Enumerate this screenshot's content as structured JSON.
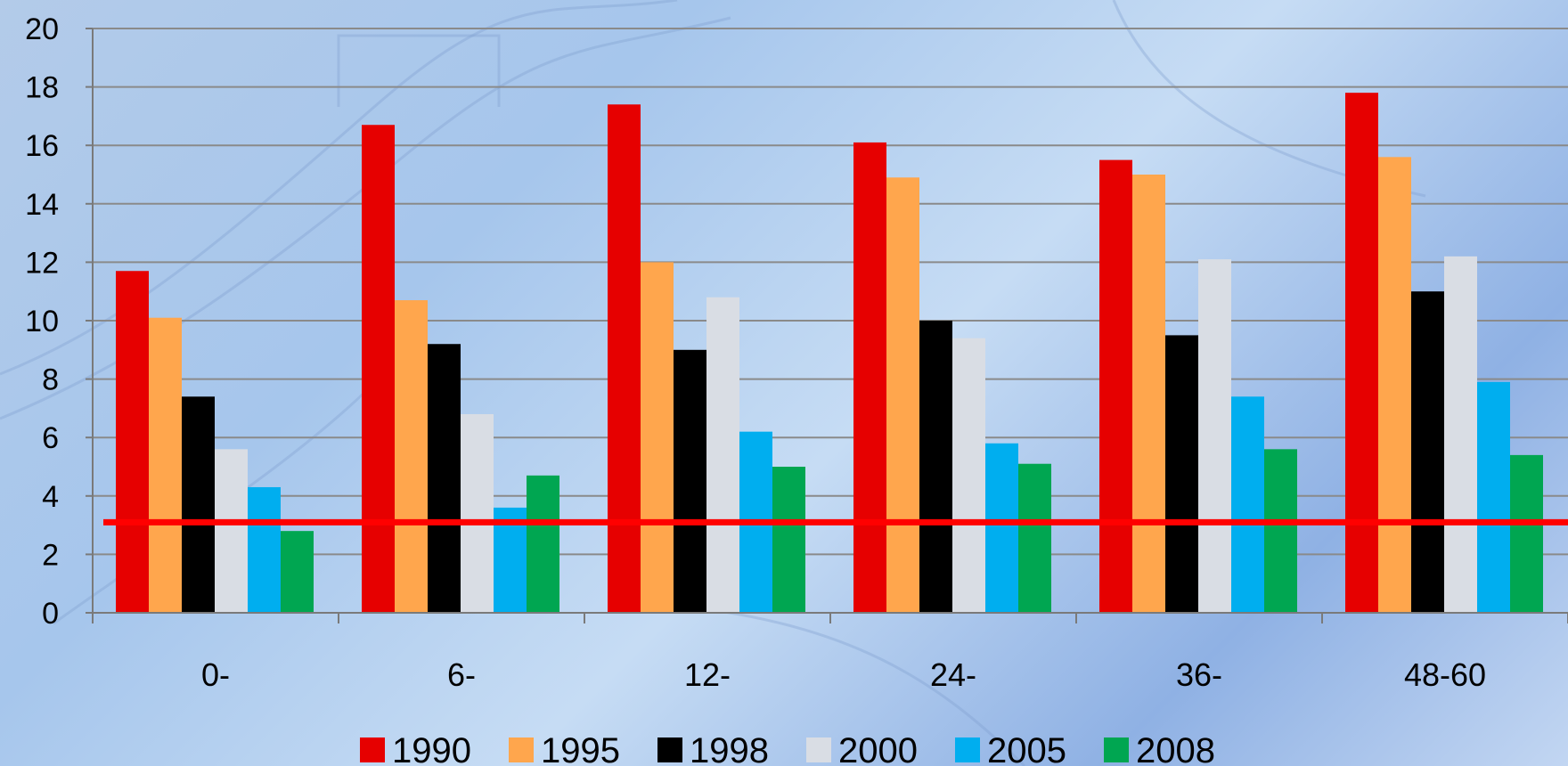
{
  "chart_data": {
    "type": "bar",
    "categories": [
      "0-",
      "6-",
      "12-",
      "24-",
      "36-",
      "48-60"
    ],
    "series": [
      {
        "name": "1990",
        "color": "#e60000",
        "values": [
          11.7,
          16.7,
          17.4,
          16.1,
          15.5,
          17.8
        ]
      },
      {
        "name": "1995",
        "color": "#ffa64d",
        "values": [
          10.1,
          10.7,
          12.0,
          14.9,
          15.0,
          15.6
        ]
      },
      {
        "name": "1998",
        "color": "#000000",
        "values": [
          7.4,
          9.2,
          9.0,
          10.0,
          9.5,
          11.0
        ]
      },
      {
        "name": "2000",
        "color": "#d9dde4",
        "values": [
          5.6,
          6.8,
          10.8,
          9.4,
          12.1,
          12.2
        ]
      },
      {
        "name": "2005",
        "color": "#00aeef",
        "values": [
          4.3,
          3.6,
          6.2,
          5.8,
          7.4,
          7.9
        ]
      },
      {
        "name": "2008",
        "color": "#00a651",
        "values": [
          2.8,
          4.7,
          5.0,
          5.1,
          5.6,
          5.4
        ]
      }
    ],
    "yticks": [
      "0",
      "2",
      "4",
      "6",
      "8",
      "10",
      "12",
      "14",
      "16",
      "18",
      "20"
    ],
    "ylim": [
      0,
      20
    ],
    "reference_line": {
      "value": 3.1,
      "color": "#ff0000"
    },
    "grid": true,
    "legend_position": "bottom",
    "gridline_color": "#8a8a8a"
  }
}
